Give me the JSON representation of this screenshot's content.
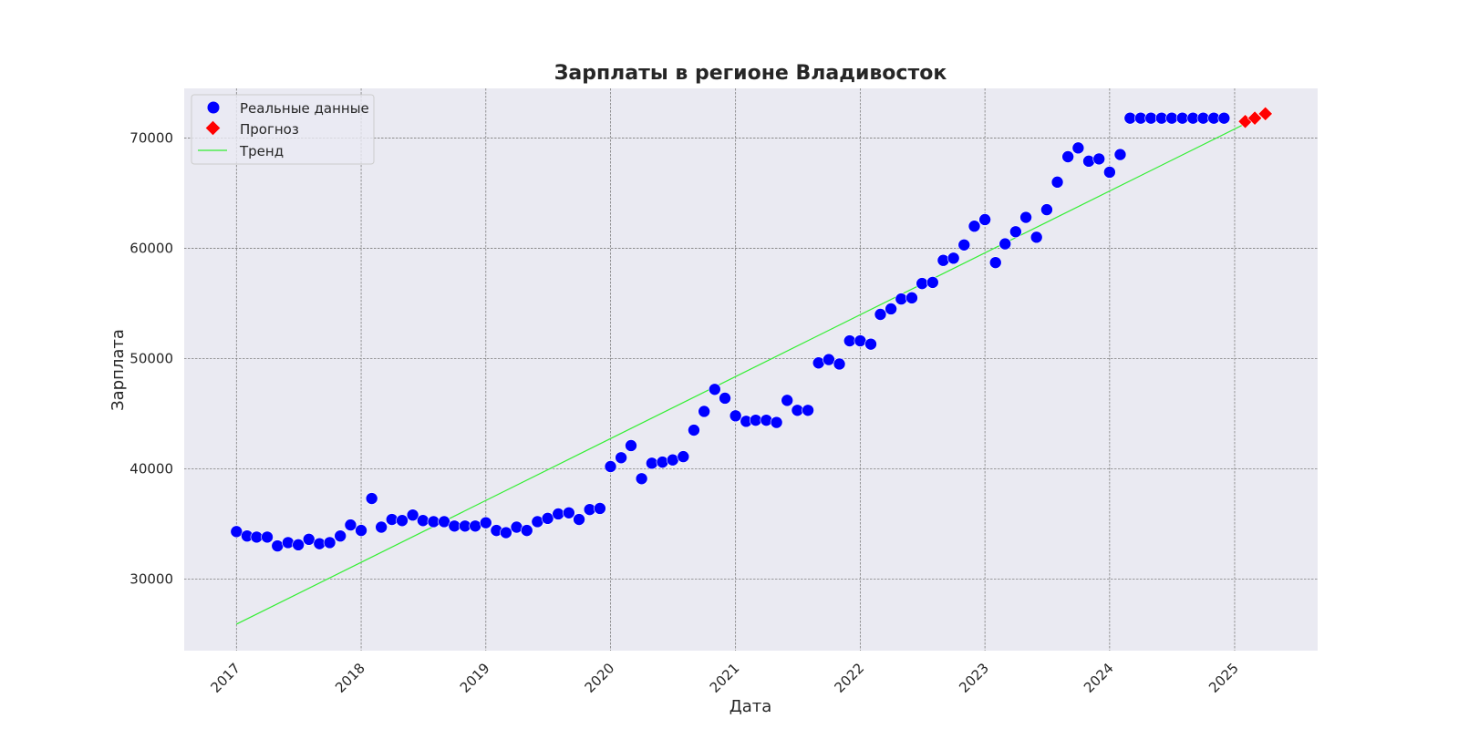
{
  "chart_data": {
    "type": "scatter",
    "title": "Зарплаты в регионе Владивосток",
    "xlabel": "Дата",
    "ylabel": "Зарплата",
    "x_tick_labels": [
      "2017",
      "2018",
      "2019",
      "2020",
      "2021",
      "2022",
      "2023",
      "2024",
      "2025"
    ],
    "y_ticks": [
      30000,
      40000,
      50000,
      60000,
      70000
    ],
    "x_range": [
      "2016-08-01",
      "2025-09-01"
    ],
    "ylim": [
      23500,
      74500
    ],
    "grid": true,
    "legend_position": "top-left",
    "colors": {
      "background": "#eaeaf2",
      "grid": "#7f7f7f",
      "actual": "#0000ff",
      "forecast": "#ff0000",
      "trend": "#33ee33"
    },
    "series": [
      {
        "name": "Реальные данные",
        "kind": "scatter",
        "marker": "circle",
        "color": "#0000ff",
        "start": "2017-01",
        "values": [
          34300,
          33900,
          33800,
          33800,
          33000,
          33300,
          33100,
          33600,
          33200,
          33300,
          33900,
          34900,
          34400,
          37300,
          34700,
          35400,
          35300,
          35800,
          35300,
          35200,
          35200,
          34800,
          34800,
          34800,
          35100,
          34400,
          34200,
          34700,
          34400,
          35200,
          35500,
          35900,
          36000,
          35400,
          36300,
          36400,
          40200,
          41000,
          42100,
          39100,
          40500,
          40600,
          40800,
          41100,
          43500,
          45200,
          47200,
          46400,
          44800,
          44300,
          44400,
          44400,
          44200,
          46200,
          45300,
          45300,
          49600,
          49900,
          49500,
          51600,
          51600,
          51300,
          54000,
          54500,
          55400,
          55500,
          56800,
          56900,
          58900,
          59100,
          60300,
          62000,
          62600,
          58700,
          60400,
          61500,
          62800,
          61000,
          63500,
          66000,
          68300,
          69100,
          67900,
          68100,
          66900,
          68500,
          71800,
          71800,
          71800,
          71800,
          71800,
          71800,
          71800,
          71800,
          71800,
          71800
        ]
      },
      {
        "name": "Прогноз",
        "kind": "scatter",
        "marker": "diamond",
        "color": "#ff0000",
        "points": [
          {
            "x": "2025-02",
            "y": 71500
          },
          {
            "x": "2025-03",
            "y": 71800
          },
          {
            "x": "2025-04",
            "y": 72200
          }
        ]
      },
      {
        "name": "Тренд",
        "kind": "line",
        "color": "#33ee33",
        "points": [
          {
            "x": "2017-01",
            "y": 25900
          },
          {
            "x": "2025-04",
            "y": 72200
          }
        ]
      }
    ]
  }
}
